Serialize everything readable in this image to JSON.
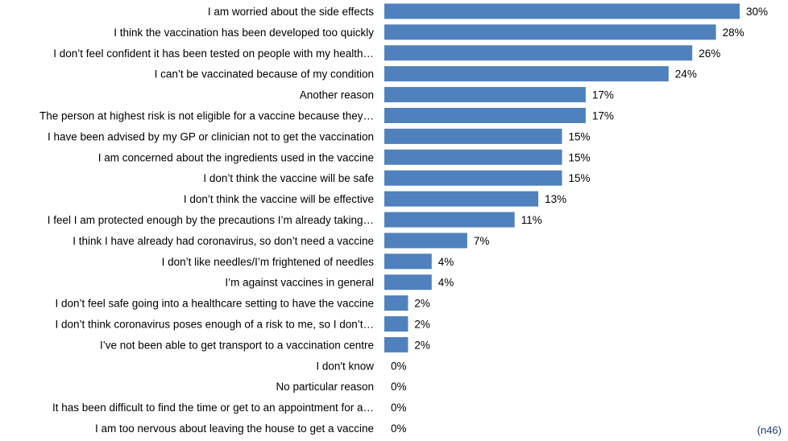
{
  "chart_data": {
    "type": "bar",
    "orientation": "horizontal",
    "categories": [
      "I am worried about the side effects",
      "I think the vaccination has been developed too quickly",
      "I don’t feel confident it has been tested on people with my health…",
      "I can’t be vaccinated because of my condition",
      "Another reason",
      "The person at highest risk is not eligible for a vaccine because they…",
      "I have been advised by my GP or clinician not to get the vaccination",
      "I am concerned about the ingredients used in the vaccine",
      "I don’t think the vaccine will be safe",
      "I don’t think the vaccine will be effective",
      "I feel I am protected enough by the precautions I’m already taking…",
      "I think I have already had coronavirus, so don’t need a vaccine",
      "I don’t like needles/I’m frightened of needles",
      "I’m against vaccines in general",
      "I don’t feel safe going into a healthcare setting to have the vaccine",
      "I don’t think coronavirus poses enough of a risk to me, so I don’t…",
      "I’ve not been able to get transport to a vaccination centre",
      "I don't know",
      "No particular reason",
      "It has been difficult to find the time or get to an appointment for a…",
      "I am too nervous about leaving the house to get a vaccine"
    ],
    "values": [
      30,
      28,
      26,
      24,
      17,
      17,
      15,
      15,
      15,
      13,
      11,
      7,
      4,
      4,
      2,
      2,
      2,
      0,
      0,
      0,
      0
    ],
    "value_labels": [
      "30%",
      "28%",
      "26%",
      "24%",
      "17%",
      "17%",
      "15%",
      "15%",
      "15%",
      "13%",
      "11%",
      "7%",
      "4%",
      "4%",
      "2%",
      "2%",
      "2%",
      "0%",
      "0%",
      "0%",
      "0%"
    ],
    "unit": "%",
    "xlim": [
      0,
      30
    ],
    "grid": false,
    "legend": false,
    "bar_color": "#4f81bd"
  },
  "note": "(n46)"
}
